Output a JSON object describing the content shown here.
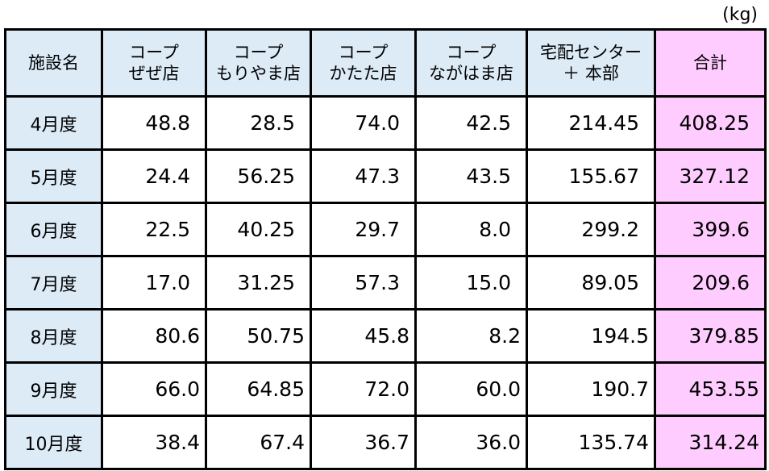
{
  "unit": "(kg)",
  "header": [
    "施設名",
    "コープ\nぜぜ店",
    "コープ\nもりやま店",
    "コープ\nかたた店",
    "コープ\nながはま店",
    "宅配センター\n＋ 本部",
    "合計"
  ],
  "rows": [
    {
      "month": "4月度",
      "values": [
        "48.8",
        "28.5",
        "74.0",
        "42.5",
        "214.45",
        "408.25"
      ]
    },
    {
      "month": "5月度",
      "values": [
        "24.4",
        "56.25",
        "47.3",
        "43.5",
        "155.67",
        "327.12"
      ]
    },
    {
      "month": "6月度",
      "values": [
        "22.5",
        "40.25",
        "29.7",
        "8.0",
        "299.2",
        "399.6"
      ]
    },
    {
      "month": "7月度",
      "values": [
        "17.0",
        "31.25",
        "57.3",
        "15.0",
        "89.05",
        "209.6"
      ]
    },
    {
      "month": "8月度",
      "values": [
        "80.6",
        "50.75",
        "45.8",
        "8.2",
        "194.5",
        "379.85"
      ]
    },
    {
      "month": "9月度",
      "values": [
        "66.0",
        "64.85",
        "72.0",
        "60.0",
        "190.7",
        "453.55"
      ]
    },
    {
      "month": "10月度",
      "values": [
        "38.4",
        "67.4",
        "36.7",
        "36.0",
        "135.74",
        "314.24"
      ]
    }
  ],
  "colors": {
    "header_bg": "#ddebf7",
    "total_bg": "#ffccff"
  }
}
